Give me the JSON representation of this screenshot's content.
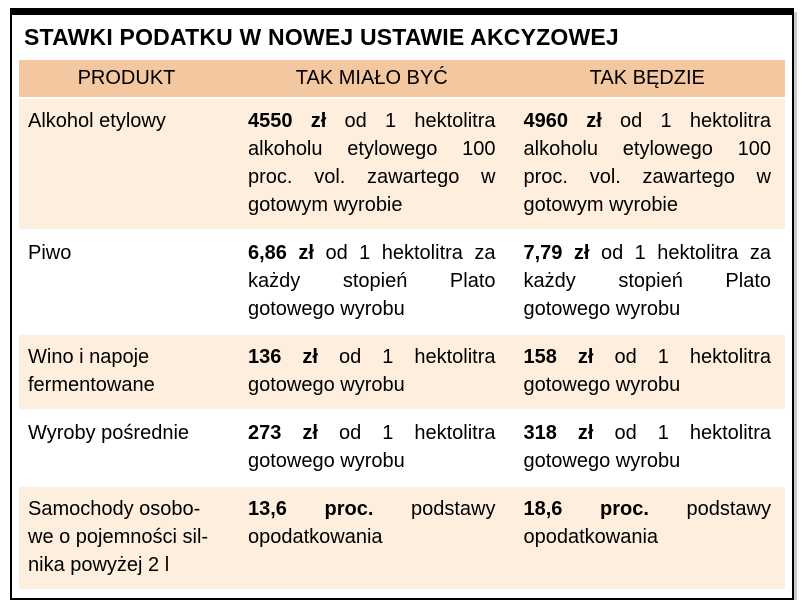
{
  "title": "STAWKI PODATKU W NOWEJ USTAWIE AKCYZOWEJ",
  "colors": {
    "header_bg": "#f3c79f",
    "odd_row_bg": "#fdeedd",
    "even_row_bg": "#ffffff",
    "border": "#000000"
  },
  "table": {
    "headers": [
      "PRODUKT",
      "TAK MIAŁO BYĆ",
      "TAK BĘDZIE"
    ],
    "rows": [
      {
        "product_lines": [
          "Alkohol etylowy"
        ],
        "was": {
          "bold": "4550 zł",
          "rest": " od 1 hektolitra alkoholu etylowego 100 proc. vol. zawartego w gotowym wyrobie"
        },
        "will": {
          "bold": "4960 zł",
          "rest": " od 1 hektolitra alkoholu etylowego 100 proc. vol. zawartego w gotowym wyrobie"
        }
      },
      {
        "product_lines": [
          "Piwo"
        ],
        "was": {
          "bold": "6,86 zł",
          "rest": " od 1 hektolitra za każdy stopień Plato gotowego wyrobu"
        },
        "will": {
          "bold": "7,79 zł",
          "rest": " od 1 hektolitra za każdy stopień Plato gotowego wyrobu"
        }
      },
      {
        "product_lines": [
          "Wino i napoje",
          "fermentowane"
        ],
        "was": {
          "bold": "136 zł",
          "rest": " od 1 hektolitra gotowego wyrobu"
        },
        "will": {
          "bold": "158 zł",
          "rest": " od 1 hektolitra gotowego wyrobu"
        }
      },
      {
        "product_lines": [
          "Wyroby pośrednie"
        ],
        "was": {
          "bold": "273 zł",
          "rest": " od 1 hektolitra gotowego wyrobu"
        },
        "will": {
          "bold": "318 zł",
          "rest": " od 1 hektolitra gotowego wyrobu"
        }
      },
      {
        "product_lines": [
          "Samochody osobo-",
          "we o pojemności sil-",
          "nika powyżej 2 l"
        ],
        "was": {
          "bold": "13,6 proc.",
          "rest": " podstawy opodatkowania"
        },
        "will": {
          "bold": "18,6 proc.",
          "rest": " podstawy opodatkowania"
        }
      }
    ]
  },
  "chart_data": {
    "type": "table",
    "title": "STAWKI PODATKU W NOWEJ USTAWIE AKCYZOWEJ",
    "columns": [
      "PRODUKT",
      "TAK MIAŁO BYĆ",
      "TAK BĘDZIE"
    ],
    "rows": [
      [
        "Alkohol etylowy",
        "4550 zł od 1 hektolitra alkoholu etylowego 100 proc. vol. zawartego w gotowym wyrobie",
        "4960 zł od 1 hektolitra alkoholu etylowego 100 proc. vol. zawartego w gotowym wyrobie"
      ],
      [
        "Piwo",
        "6,86 zł od 1 hektolitra za każdy stopień Plato gotowego wyrobu",
        "7,79 zł od 1 hektolitra za każdy stopień Plato gotowego wyrobu"
      ],
      [
        "Wino i napoje fermentowane",
        "136 zł od 1 hektolitra gotowego wyrobu",
        "158 zł od 1 hektolitra gotowego wyrobu"
      ],
      [
        "Wyroby pośrednie",
        "273 zł od 1 hektolitra gotowego wyrobu",
        "318 zł od 1 hektolitra gotowego wyrobu"
      ],
      [
        "Samochody osobowe o pojemności silnika powyżej 2 l",
        "13,6 proc. podstawy opodatkowania",
        "18,6 proc. podstawy opodatkowania"
      ]
    ],
    "legend_position": "none",
    "grid": false
  }
}
